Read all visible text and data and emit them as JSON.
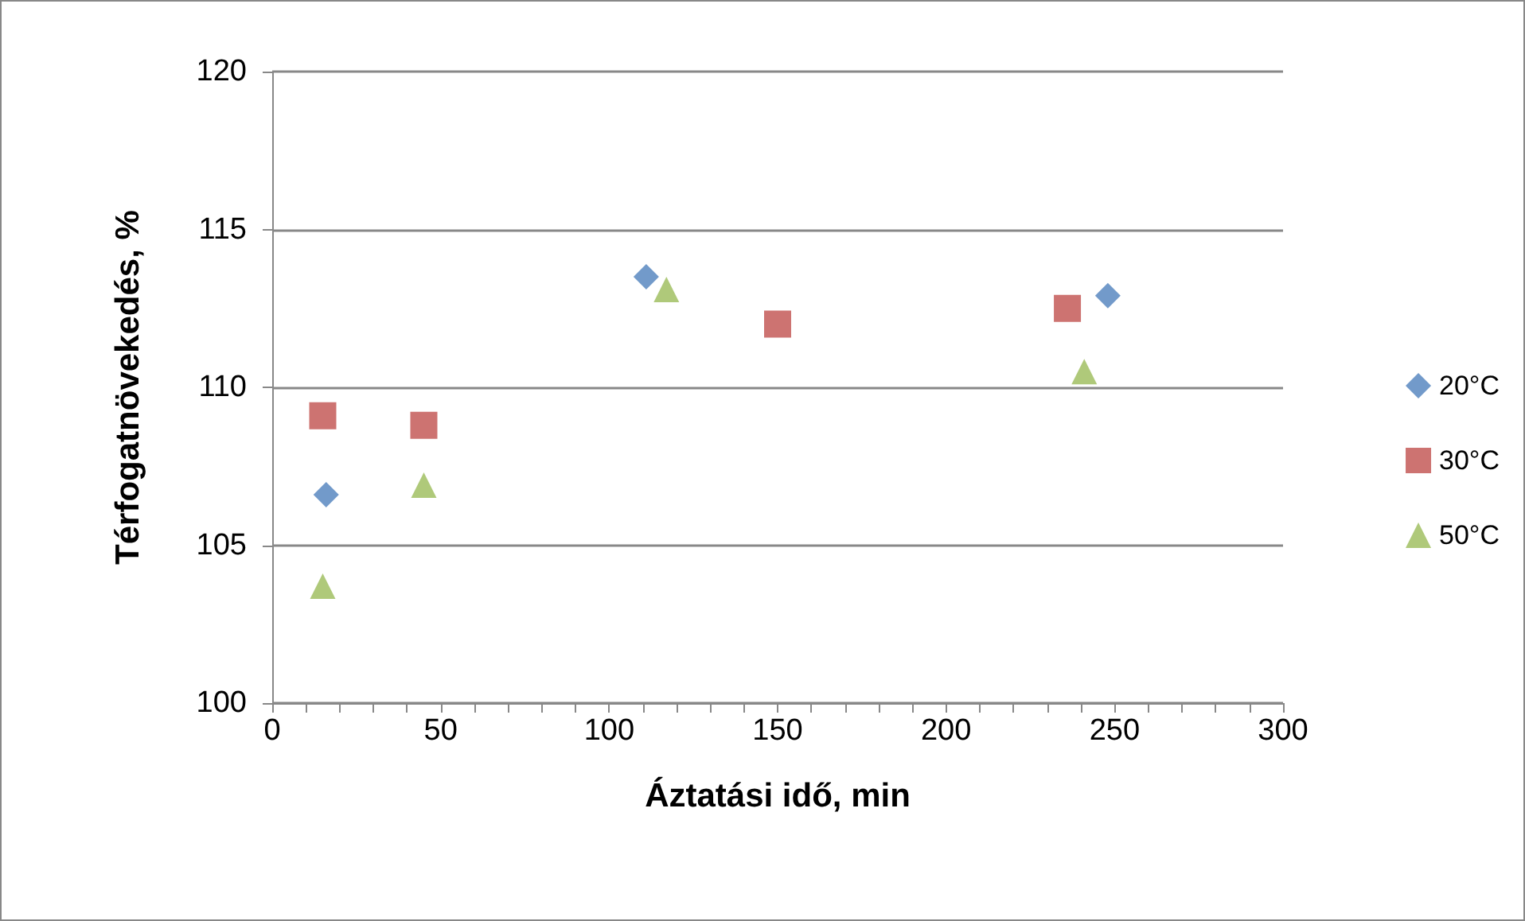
{
  "chart_data": {
    "type": "scatter",
    "xlabel": "Áztatási idő, min",
    "ylabel": "Térfogatnövekedés, %",
    "xlim": [
      0,
      300
    ],
    "xticks": [
      0,
      50,
      100,
      150,
      200,
      250,
      300
    ],
    "ylim": [
      100,
      120
    ],
    "yticks": [
      100,
      105,
      110,
      115,
      120
    ],
    "grid": "y",
    "legend": "right",
    "series": [
      {
        "name": "20°C",
        "color": "#4f81bd",
        "marker": "diamond",
        "x": [
          16,
          111,
          248
        ],
        "values": [
          106.6,
          113.5,
          112.9
        ]
      },
      {
        "name": "30°C",
        "color": "#c0504d",
        "marker": "square",
        "x": [
          15,
          45,
          150,
          236
        ],
        "values": [
          109.1,
          108.8,
          112.0,
          112.5
        ]
      },
      {
        "name": "50°C",
        "color": "#9bbb59",
        "marker": "triangle",
        "x": [
          15,
          45,
          117,
          241
        ],
        "values": [
          103.7,
          106.9,
          113.1,
          110.5
        ]
      }
    ]
  }
}
